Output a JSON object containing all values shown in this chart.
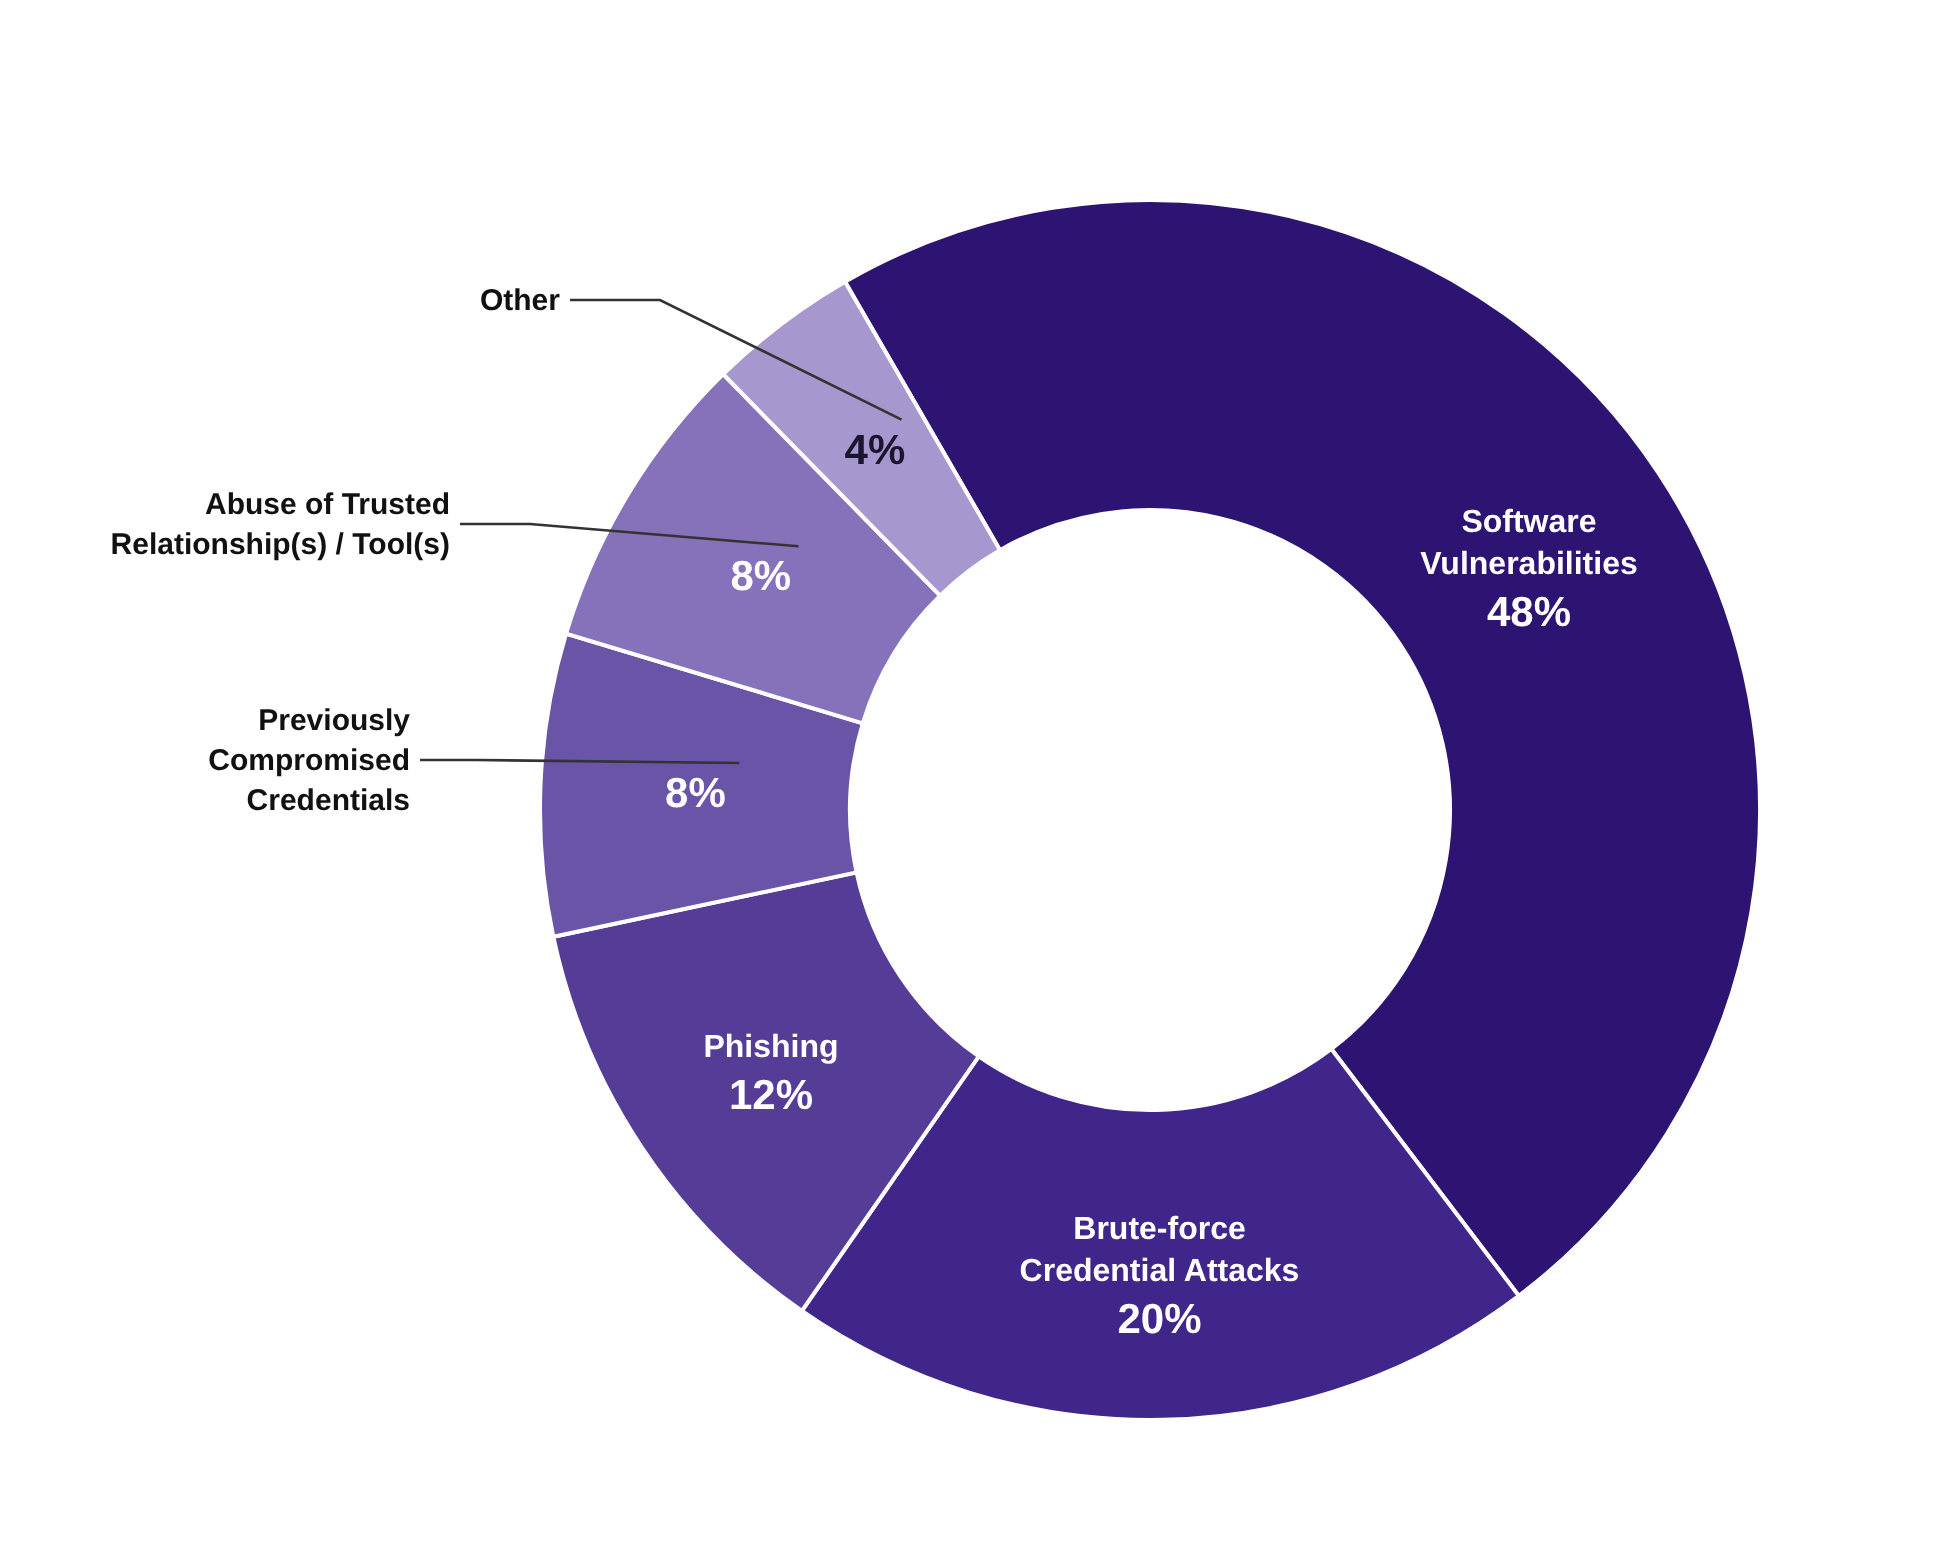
{
  "chart_data": {
    "type": "donut",
    "categories": [
      "Software Vulnerabilities",
      "Brute-force Credential Attacks",
      "Phishing",
      "Previously Compromised Credentials",
      "Abuse of Trusted Relationship(s) / Tool(s)",
      "Other"
    ],
    "values": [
      48,
      20,
      12,
      8,
      8,
      4
    ],
    "value_labels": [
      "48%",
      "20%",
      "12%",
      "8%",
      "8%",
      "4%"
    ],
    "colors": [
      "#2e1472",
      "#40258a",
      "#553d97",
      "#6a54a8",
      "#8671bb",
      "#a698cf"
    ]
  }
}
